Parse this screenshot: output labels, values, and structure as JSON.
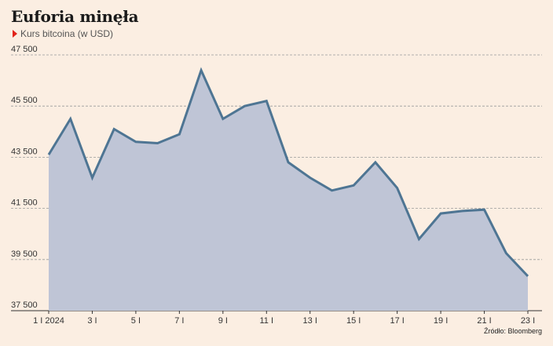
{
  "title": "Euforia minęła",
  "subtitle": "Kurs bitcoina (w USD)",
  "source": "Źródło: Bloomberg",
  "colors": {
    "background": "#fbeee2",
    "line": "#4e7593",
    "area": "#bfc5d6",
    "grid": "#9a9a9a",
    "marker": "#e2231a"
  },
  "chart_data": {
    "type": "area",
    "x": [
      "1 I 2024",
      "2 I",
      "3 I",
      "4 I",
      "5 I",
      "6 I",
      "7 I",
      "8 I",
      "9 I",
      "10 I",
      "11 I",
      "12 I",
      "13 I",
      "14 I",
      "15 I",
      "16 I",
      "17 I",
      "18 I",
      "19 I",
      "20 I",
      "21 I",
      "22 I",
      "23 I"
    ],
    "values": [
      43600,
      45000,
      42700,
      44600,
      44100,
      44050,
      44400,
      46900,
      45000,
      45500,
      45700,
      43300,
      42700,
      42200,
      42400,
      43300,
      42300,
      40300,
      41300,
      41400,
      41450,
      39750,
      38850
    ],
    "tick_labels": [
      "1 I 2024",
      "3 I",
      "5 I",
      "7 I",
      "9 I",
      "11 I",
      "13 I",
      "15 I",
      "17 I",
      "19 I",
      "21 I",
      "23 I"
    ],
    "y_ticks": [
      "47 500",
      "45 500",
      "43 500",
      "41 500",
      "39 500",
      "37 500"
    ],
    "y_tick_values": [
      47500,
      45500,
      43500,
      41500,
      39500,
      37500
    ],
    "ylim": [
      37500,
      47500
    ],
    "grid": true,
    "xlabel": "",
    "ylabel": ""
  }
}
